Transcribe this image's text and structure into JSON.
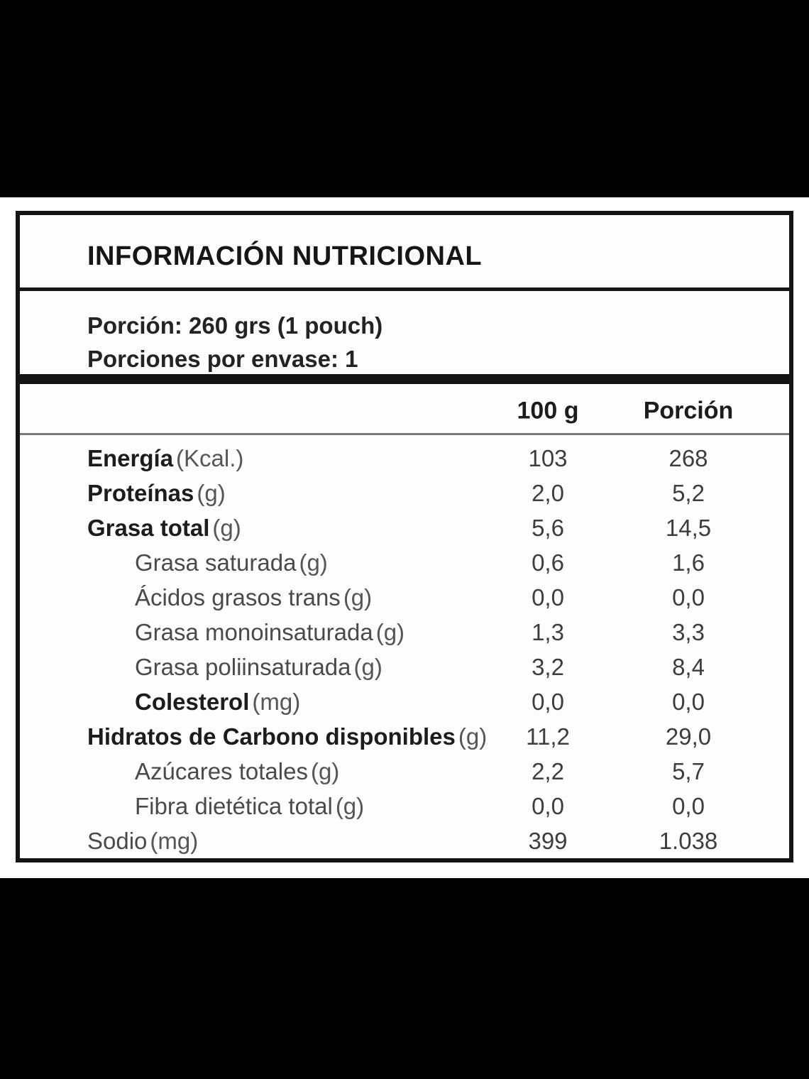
{
  "label": {
    "title": "INFORMACIÓN NUTRICIONAL",
    "serving": {
      "line1": "Porción: 260 grs (1 pouch)",
      "line2": "Porciones por envase: 1"
    },
    "columns": {
      "per100": "100 g",
      "portion": "Porción"
    },
    "rows": [
      {
        "name": "Energía",
        "unit": "(Kcal.)",
        "per100": "103",
        "portion": "268"
      },
      {
        "name": "Proteínas",
        "unit": "(g)",
        "per100": "2,0",
        "portion": "5,2"
      },
      {
        "name": "Grasa total",
        "unit": "(g)",
        "per100": "5,6",
        "portion": "14,5"
      },
      {
        "name": "Grasa saturada",
        "unit": "(g)",
        "per100": "0,6",
        "portion": "1,6"
      },
      {
        "name": "Ácidos grasos trans",
        "unit": "(g)",
        "per100": "0,0",
        "portion": "0,0"
      },
      {
        "name": "Grasa monoinsaturada",
        "unit": "(g)",
        "per100": "1,3",
        "portion": "3,3"
      },
      {
        "name": "Grasa poliinsaturada",
        "unit": "(g)",
        "per100": "3,2",
        "portion": "8,4"
      },
      {
        "name": "Colesterol",
        "unit": "(mg)",
        "per100": "0,0",
        "portion": "0,0"
      },
      {
        "name": "Hidratos de Carbono disponibles",
        "unit": "(g)",
        "per100": "11,2",
        "portion": "29,0"
      },
      {
        "name": "Azúcares totales",
        "unit": "(g)",
        "per100": "2,2",
        "portion": "5,7"
      },
      {
        "name": "Fibra dietética total",
        "unit": "(g)",
        "per100": "0,0",
        "portion": "0,0"
      },
      {
        "name": "Sodio",
        "unit": "(mg)",
        "per100": "399",
        "portion": "1.038"
      }
    ]
  },
  "colors": {
    "border": "#141414",
    "bold_text": "#1c1c1c",
    "light_text": "#4a4a4a",
    "letterbox": "#000000",
    "background": "#ffffff"
  }
}
